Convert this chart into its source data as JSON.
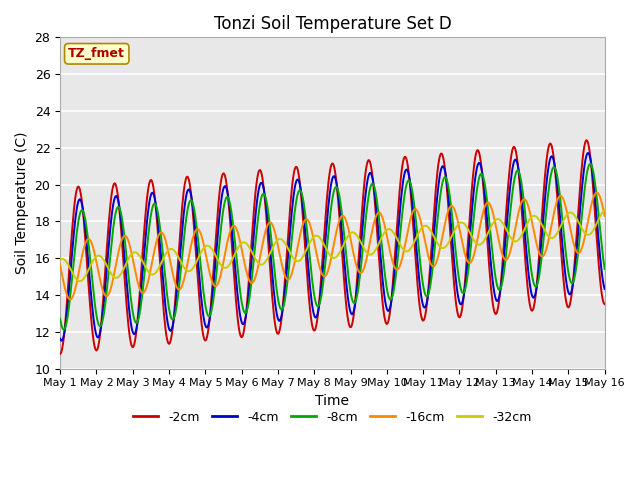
{
  "title": "Tonzi Soil Temperature Set D",
  "xlabel": "Time",
  "ylabel": "Soil Temperature (C)",
  "ylim": [
    10,
    28
  ],
  "yticks": [
    10,
    12,
    14,
    16,
    18,
    20,
    22,
    24,
    26,
    28
  ],
  "legend_label": "TZ_fmet",
  "series_labels": [
    "-2cm",
    "-4cm",
    "-8cm",
    "-16cm",
    "-32cm"
  ],
  "series_colors": [
    "#cc0000",
    "#0000cc",
    "#00aa00",
    "#ff8800",
    "#cccc00"
  ],
  "plot_bg_color": "#e8e8e8",
  "n_days": 15,
  "base_temp": 15.3,
  "trend": 0.18,
  "amplitudes": [
    4.5,
    3.8,
    3.2,
    1.6,
    0.65
  ],
  "phase_lags": [
    0.0,
    0.04,
    0.1,
    0.28,
    0.55
  ],
  "points_per_day": 48
}
